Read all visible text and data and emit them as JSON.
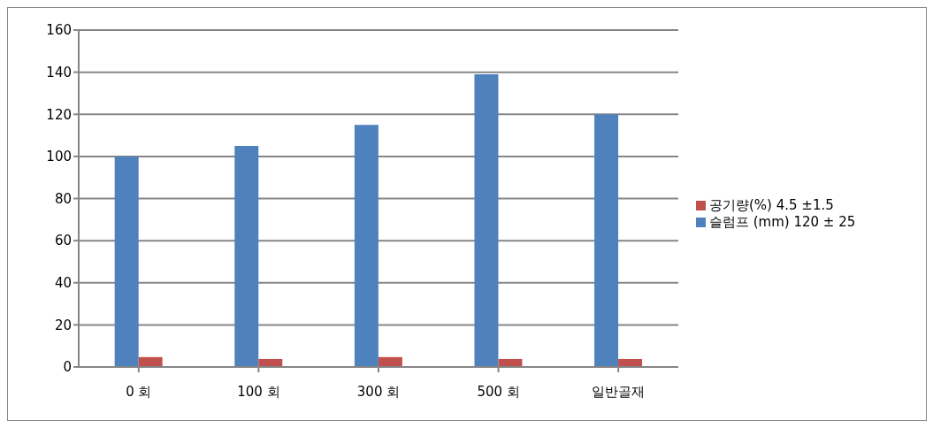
{
  "chart_data": {
    "type": "bar",
    "categories": [
      "0 회",
      "100 회",
      "300 회",
      "500 회",
      "일반골재"
    ],
    "series": [
      {
        "name": "슬럼프 (mm) 120 ± 25",
        "color": "#4f81bd",
        "values": [
          100,
          105,
          115,
          139,
          120
        ]
      },
      {
        "name": "공기량(%) 4.5 ±1.5",
        "color": "#c0504d",
        "values": [
          4.7,
          3.8,
          4.7,
          3.8,
          3.8
        ]
      }
    ],
    "ylim": [
      0,
      160
    ],
    "yticks": [
      0,
      20,
      40,
      60,
      80,
      100,
      120,
      140,
      160
    ],
    "grid": "y",
    "legend": "right"
  }
}
